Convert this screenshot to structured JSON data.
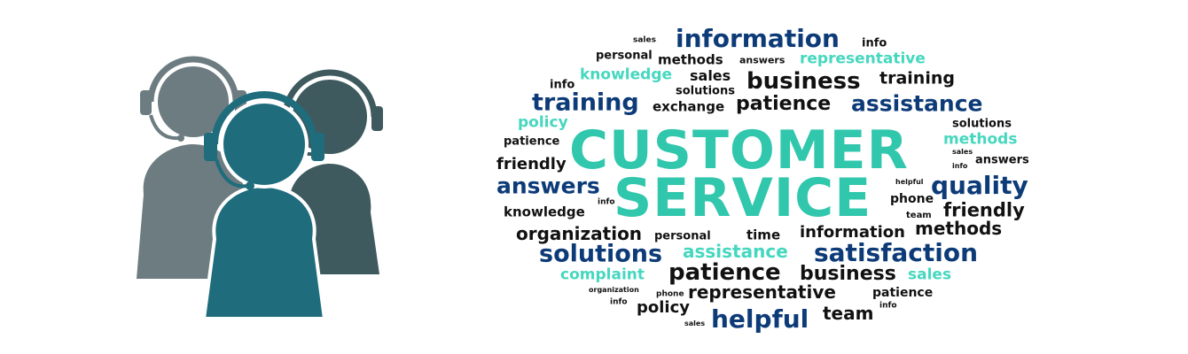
{
  "colors": {
    "navy": "#0d3b78",
    "black": "#111111",
    "teal": "#46d7bf",
    "headline": "#31c7ad",
    "agent_gray": "#6c7c80",
    "agent_dark": "#3e5a5f",
    "agent_teal": "#1e6c7c"
  },
  "illustration": {
    "icon": "customer-service-agents-with-headsets-icon"
  },
  "cloud": {
    "headline_1": "CUSTOMER",
    "headline_2": "SERVICE",
    "words": [
      {
        "id": "sales-1",
        "text": "sales",
        "color": "black"
      },
      {
        "id": "information-1",
        "text": "information",
        "color": "navy"
      },
      {
        "id": "info-1",
        "text": "info",
        "color": "black"
      },
      {
        "id": "personal-1",
        "text": "personal",
        "color": "black"
      },
      {
        "id": "methods-1",
        "text": "methods",
        "color": "black"
      },
      {
        "id": "answers-1",
        "text": "answers",
        "color": "black"
      },
      {
        "id": "representative-1",
        "text": "representative",
        "color": "teal"
      },
      {
        "id": "knowledge-1",
        "text": "knowledge",
        "color": "teal"
      },
      {
        "id": "sales-2",
        "text": "sales",
        "color": "black"
      },
      {
        "id": "business-1",
        "text": "business",
        "color": "black"
      },
      {
        "id": "training-1",
        "text": "training",
        "color": "black"
      },
      {
        "id": "info-2",
        "text": "info",
        "color": "black"
      },
      {
        "id": "solutions-1",
        "text": "solutions",
        "color": "black"
      },
      {
        "id": "training-2",
        "text": "training",
        "color": "navy"
      },
      {
        "id": "exchange-1",
        "text": "exchange",
        "color": "black"
      },
      {
        "id": "patience-1",
        "text": "patience",
        "color": "black"
      },
      {
        "id": "assistance-1",
        "text": "assistance",
        "color": "navy"
      },
      {
        "id": "policy-1",
        "text": "policy",
        "color": "teal"
      },
      {
        "id": "solutions-2",
        "text": "solutions",
        "color": "black"
      },
      {
        "id": "patience-2",
        "text": "patience",
        "color": "black"
      },
      {
        "id": "methods-2",
        "text": "methods",
        "color": "teal"
      },
      {
        "id": "sales-3",
        "text": "sales",
        "color": "black"
      },
      {
        "id": "friendly-1",
        "text": "friendly",
        "color": "black"
      },
      {
        "id": "answers-2",
        "text": "answers",
        "color": "black"
      },
      {
        "id": "info-3",
        "text": "info",
        "color": "black"
      },
      {
        "id": "helpful-1",
        "text": "helpful",
        "color": "black"
      },
      {
        "id": "answers-3",
        "text": "answers",
        "color": "navy"
      },
      {
        "id": "quality-1",
        "text": "quality",
        "color": "navy"
      },
      {
        "id": "info-4",
        "text": "info",
        "color": "black"
      },
      {
        "id": "phone-1",
        "text": "phone",
        "color": "black"
      },
      {
        "id": "knowledge-2",
        "text": "knowledge",
        "color": "black"
      },
      {
        "id": "team-1",
        "text": "team",
        "color": "black"
      },
      {
        "id": "friendly-2",
        "text": "friendly",
        "color": "black"
      },
      {
        "id": "organization-1",
        "text": "organization",
        "color": "black"
      },
      {
        "id": "personal-2",
        "text": "personal",
        "color": "black"
      },
      {
        "id": "time-1",
        "text": "time",
        "color": "black"
      },
      {
        "id": "information-2",
        "text": "information",
        "color": "black"
      },
      {
        "id": "methods-3",
        "text": "methods",
        "color": "black"
      },
      {
        "id": "solutions-3",
        "text": "solutions",
        "color": "navy"
      },
      {
        "id": "assistance-2",
        "text": "assistance",
        "color": "teal"
      },
      {
        "id": "satisfaction-1",
        "text": "satisfaction",
        "color": "navy"
      },
      {
        "id": "patience-3",
        "text": "patience",
        "color": "black"
      },
      {
        "id": "business-2",
        "text": "business",
        "color": "black"
      },
      {
        "id": "complaint-1",
        "text": "complaint",
        "color": "teal"
      },
      {
        "id": "sales-4",
        "text": "sales",
        "color": "teal"
      },
      {
        "id": "organization-2",
        "text": "organization",
        "color": "black"
      },
      {
        "id": "representative-2",
        "text": "representative",
        "color": "black"
      },
      {
        "id": "patience-4",
        "text": "patience",
        "color": "black"
      },
      {
        "id": "phone-2",
        "text": "phone",
        "color": "black"
      },
      {
        "id": "info-5",
        "text": "info",
        "color": "black"
      },
      {
        "id": "policy-2",
        "text": "policy",
        "color": "black"
      },
      {
        "id": "info-6",
        "text": "info",
        "color": "black"
      },
      {
        "id": "helpful-2",
        "text": "helpful",
        "color": "navy"
      },
      {
        "id": "team-2",
        "text": "team",
        "color": "black"
      },
      {
        "id": "sales-5",
        "text": "sales",
        "color": "black"
      }
    ]
  }
}
